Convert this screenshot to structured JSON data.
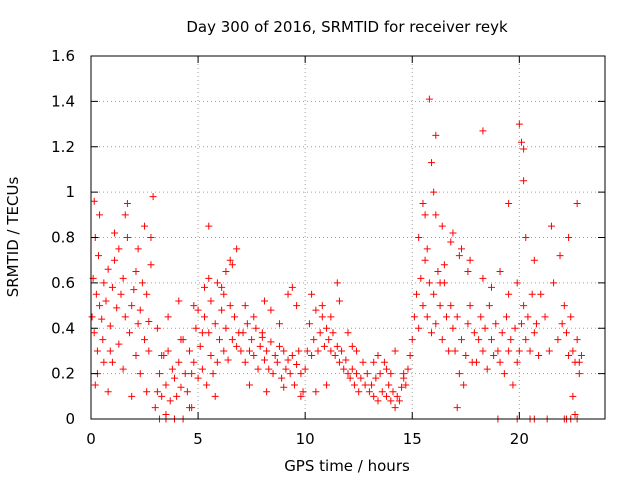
{
  "chart_data": {
    "type": "scatter",
    "title": "Day 300 of 2016, SRMTID for receiver reyk",
    "xlabel": "GPS time / hours",
    "ylabel": "SRMTID / TECUs",
    "xlim": [
      0,
      24
    ],
    "ylim": [
      0,
      1.6
    ],
    "xticks": [
      0,
      5,
      10,
      15,
      20
    ],
    "xtick_labels": [
      "0",
      "5",
      "10",
      "15",
      "20"
    ],
    "yticks": [
      0,
      0.2,
      0.4,
      0.6,
      0.8,
      1,
      1.2,
      1.4,
      1.6
    ],
    "ytick_labels": [
      "0",
      "0.2",
      "0.4",
      "0.6",
      "0.8",
      "1",
      "1.2",
      "1.4",
      "1.6"
    ],
    "grid": true,
    "marker": "plus",
    "color": "#ff0000",
    "series": [
      {
        "name": "SRMTID",
        "x": [
          0.05,
          0.1,
          0.15,
          0.2,
          0.25,
          0.3,
          0.35,
          0.4,
          0.5,
          0.55,
          0.6,
          0.7,
          0.8,
          0.9,
          1.0,
          1.1,
          1.2,
          1.3,
          1.4,
          1.5,
          1.6,
          1.7,
          1.8,
          1.9,
          2.0,
          2.1,
          2.2,
          2.3,
          2.4,
          2.5,
          2.6,
          2.7,
          2.8,
          0.2,
          0.4,
          0.6,
          0.9,
          1.1,
          1.5,
          1.7,
          2.1,
          2.5,
          2.7,
          0.3,
          0.8,
          1.3,
          1.9,
          2.3,
          2.6,
          1.6,
          2.8,
          2.9,
          0.15,
          1.0,
          2.2,
          3.0,
          3.1,
          3.2,
          3.3,
          3.4,
          3.5,
          3.6,
          3.7,
          3.8,
          3.9,
          4.0,
          4.1,
          4.2,
          4.3,
          4.4,
          4.5,
          4.6,
          4.7,
          4.8,
          4.9,
          5.0,
          5.1,
          5.2,
          5.3,
          5.4,
          5.5,
          5.6,
          5.7,
          5.8,
          5.9,
          6.0,
          6.1,
          6.2,
          6.3,
          6.4,
          6.5,
          6.6,
          6.7,
          6.8,
          6.9,
          3.2,
          3.5,
          3.9,
          4.3,
          4.6,
          5.0,
          5.3,
          5.6,
          5.9,
          6.2,
          6.5,
          6.8,
          3.1,
          3.6,
          4.2,
          4.8,
          5.5,
          6.1,
          6.6,
          3.5,
          5.5,
          6.3,
          3.3,
          4.1,
          4.7,
          5.2,
          5.8,
          7.0,
          7.1,
          7.2,
          7.3,
          7.4,
          7.5,
          7.6,
          7.7,
          7.8,
          7.9,
          8.0,
          8.1,
          8.2,
          8.3,
          8.4,
          8.5,
          8.6,
          8.7,
          8.8,
          8.9,
          9.0,
          9.1,
          9.2,
          9.3,
          9.4,
          9.5,
          9.6,
          9.7,
          9.8,
          9.9,
          7.2,
          7.6,
          8.0,
          8.4,
          8.8,
          9.2,
          9.6,
          7.4,
          8.2,
          9.0,
          9.8,
          8.1,
          9.4,
          10.0,
          10.1,
          10.2,
          10.3,
          10.4,
          10.5,
          10.6,
          10.7,
          10.8,
          10.9,
          11.0,
          11.1,
          11.2,
          11.3,
          11.4,
          11.5,
          11.6,
          11.7,
          11.8,
          11.9,
          12.0,
          12.1,
          12.2,
          12.3,
          12.4,
          12.5,
          12.6,
          12.7,
          12.8,
          12.9,
          10.3,
          10.8,
          11.2,
          11.6,
          12.0,
          12.4,
          10.5,
          11.0,
          11.5,
          12.2,
          13.0,
          13.1,
          13.2,
          13.3,
          13.4,
          13.5,
          13.6,
          13.7,
          13.8,
          13.9,
          14.0,
          14.1,
          14.2,
          14.3,
          14.4,
          14.5,
          14.6,
          14.7,
          14.8,
          14.9,
          13.4,
          13.8,
          14.2,
          14.6,
          13.2,
          14.0,
          15.0,
          15.1,
          15.2,
          15.3,
          15.4,
          15.5,
          15.6,
          15.7,
          15.8,
          15.9,
          16.0,
          16.1,
          16.2,
          16.3,
          16.4,
          16.5,
          16.6,
          16.7,
          16.8,
          16.9,
          17.0,
          17.1,
          17.2,
          17.3,
          17.4,
          17.5,
          17.6,
          17.7,
          17.8,
          17.9,
          15.3,
          15.7,
          16.1,
          16.5,
          16.9,
          17.3,
          17.7,
          15.5,
          16.0,
          16.4,
          16.8,
          17.2,
          17.6,
          15.8,
          16.1,
          15.9,
          15.6,
          16.3,
          17.1,
          18.0,
          18.1,
          18.2,
          18.3,
          18.4,
          18.5,
          18.6,
          18.7,
          18.8,
          18.9,
          19.0,
          19.1,
          19.2,
          19.3,
          19.4,
          19.5,
          19.6,
          19.7,
          19.8,
          19.9,
          20.0,
          20.1,
          20.2,
          20.3,
          20.4,
          20.5,
          20.6,
          20.7,
          20.8,
          20.9,
          18.3,
          18.7,
          19.1,
          19.5,
          19.9,
          20.3,
          20.7,
          18.3,
          19.0,
          19.5,
          20.0,
          20.1,
          20.2,
          20.2,
          19.9,
          20.5,
          20.7,
          21.0,
          21.2,
          21.4,
          21.6,
          21.8,
          22.0,
          22.1,
          22.2,
          22.3,
          22.4,
          22.5,
          22.6,
          22.7,
          22.8,
          22.9,
          21.5,
          21.9,
          22.3,
          22.7,
          22.6,
          22.7,
          22.4,
          22.2,
          22.8,
          22.5,
          21.3,
          22.1
        ],
        "y": [
          0.45,
          0.62,
          0.38,
          0.8,
          0.55,
          0.3,
          0.72,
          0.5,
          0.44,
          0.35,
          0.6,
          0.52,
          0.66,
          0.41,
          0.58,
          0.7,
          0.49,
          0.33,
          0.55,
          0.62,
          0.45,
          0.8,
          0.38,
          0.5,
          0.57,
          0.65,
          0.42,
          0.48,
          0.6,
          0.35,
          0.55,
          0.43,
          0.68,
          0.15,
          0.9,
          0.25,
          0.3,
          0.82,
          0.22,
          0.95,
          0.28,
          0.85,
          0.3,
          0.2,
          0.12,
          0.75,
          0.1,
          0.2,
          0.12,
          0.9,
          0.8,
          0.98,
          0.96,
          0.25,
          0.75,
          0.05,
          0.12,
          0.2,
          0.1,
          0.28,
          0.15,
          0.3,
          0.08,
          0.22,
          0.18,
          0.1,
          0.25,
          0.14,
          0.35,
          0.2,
          0.12,
          0.3,
          0.05,
          0.25,
          0.4,
          0.18,
          0.32,
          0.22,
          0.45,
          0.15,
          0.38,
          0.28,
          0.2,
          0.42,
          0.25,
          0.35,
          0.48,
          0.3,
          0.4,
          0.26,
          0.5,
          0.35,
          0.45,
          0.32,
          0.38,
          0.0,
          0.02,
          0.0,
          0.0,
          0.05,
          0.48,
          0.58,
          0.52,
          0.6,
          0.55,
          0.7,
          0.75,
          0.4,
          0.45,
          0.35,
          0.5,
          0.62,
          0.58,
          0.68,
          0.0,
          0.85,
          0.65,
          0.28,
          0.52,
          0.2,
          0.38,
          0.1,
          0.3,
          0.38,
          0.25,
          0.42,
          0.3,
          0.35,
          0.28,
          0.4,
          0.22,
          0.32,
          0.36,
          0.26,
          0.3,
          0.22,
          0.34,
          0.2,
          0.28,
          0.25,
          0.32,
          0.18,
          0.3,
          0.22,
          0.26,
          0.2,
          0.28,
          0.15,
          0.24,
          0.3,
          0.2,
          0.12,
          0.5,
          0.45,
          0.38,
          0.48,
          0.42,
          0.55,
          0.5,
          0.15,
          0.12,
          0.14,
          0.1,
          0.52,
          0.58,
          0.22,
          0.3,
          0.42,
          0.28,
          0.35,
          0.48,
          0.3,
          0.38,
          0.45,
          0.32,
          0.4,
          0.35,
          0.3,
          0.38,
          0.28,
          0.32,
          0.25,
          0.3,
          0.22,
          0.26,
          0.2,
          0.18,
          0.22,
          0.15,
          0.2,
          0.12,
          0.18,
          0.25,
          0.15,
          0.2,
          0.55,
          0.5,
          0.45,
          0.52,
          0.38,
          0.3,
          0.12,
          0.15,
          0.6,
          0.32,
          0.12,
          0.15,
          0.1,
          0.18,
          0.08,
          0.2,
          0.12,
          0.25,
          0.1,
          0.15,
          0.08,
          0.12,
          0.05,
          0.1,
          0.08,
          0.14,
          0.2,
          0.15,
          0.22,
          0.28,
          0.28,
          0.22,
          0.3,
          0.18,
          0.25,
          0.2,
          0.35,
          0.45,
          0.55,
          0.4,
          0.62,
          0.5,
          0.7,
          0.45,
          0.6,
          0.38,
          0.55,
          0.42,
          0.65,
          0.5,
          0.35,
          0.6,
          0.45,
          0.3,
          0.5,
          0.4,
          0.3,
          0.45,
          0.2,
          0.35,
          0.15,
          0.28,
          0.42,
          0.5,
          0.25,
          0.38,
          0.8,
          0.75,
          0.9,
          0.68,
          0.82,
          0.75,
          0.7,
          0.95,
          1.0,
          0.85,
          0.78,
          0.72,
          0.65,
          1.41,
          1.25,
          1.13,
          0.9,
          0.6,
          0.05,
          0.25,
          0.35,
          0.45,
          0.3,
          0.4,
          0.22,
          0.5,
          0.35,
          0.28,
          0.42,
          0.3,
          0.25,
          0.38,
          0.2,
          0.45,
          0.3,
          0.35,
          0.15,
          0.4,
          0.25,
          0.3,
          0.42,
          0.5,
          0.35,
          0.45,
          0.3,
          0.55,
          0.38,
          0.42,
          0.28,
          0.62,
          0.58,
          0.65,
          0.55,
          0.6,
          0.8,
          0.7,
          1.27,
          0.0,
          0.95,
          1.3,
          1.22,
          1.19,
          1.05,
          0.0,
          0.0,
          0.0,
          0.55,
          0.45,
          0.3,
          0.6,
          0.35,
          0.42,
          0.5,
          0.38,
          0.28,
          0.45,
          0.3,
          0.25,
          0.35,
          0.2,
          0.28,
          0.85,
          0.72,
          0.8,
          0.95,
          0.02,
          0.0,
          0.0,
          0.0,
          0.25,
          0.1,
          0.0,
          0.0
        ]
      }
    ]
  }
}
